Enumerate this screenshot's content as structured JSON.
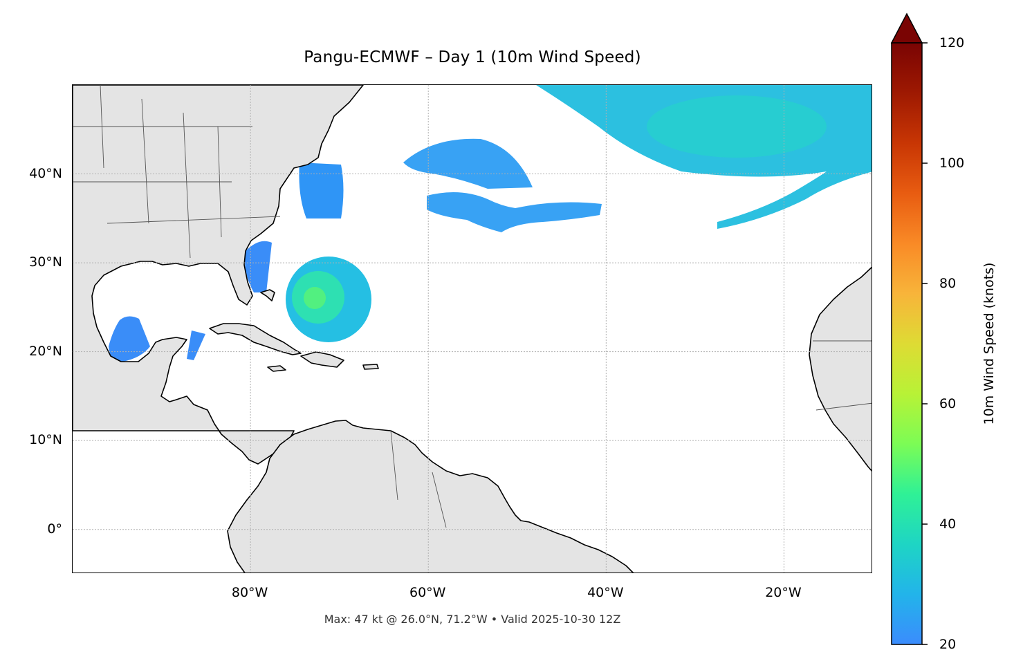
{
  "title": "Pangu-ECMWF – Day 1 (10m Wind Speed)",
  "footer": "Max: 47 kt @ 26.0°N, 71.2°W • Valid 2025-10-30 12Z",
  "map": {
    "extent": {
      "lon_min": -100,
      "lon_max": -10,
      "lat_min": -5,
      "lat_max": 50
    },
    "lat_ticks": [
      {
        "value": 40,
        "label": "40°N"
      },
      {
        "value": 30,
        "label": "30°N"
      },
      {
        "value": 20,
        "label": "20°N"
      },
      {
        "value": 10,
        "label": "10°N"
      },
      {
        "value": 0,
        "label": "0°"
      }
    ],
    "lon_ticks": [
      {
        "value": -80,
        "label": "80°W"
      },
      {
        "value": -60,
        "label": "60°W"
      },
      {
        "value": -40,
        "label": "40°W"
      },
      {
        "value": -20,
        "label": "20°W"
      }
    ],
    "gridlines": true,
    "land_color": "#e4e4e4",
    "ocean_color": "#ffffff"
  },
  "colorbar": {
    "label": "10m Wind Speed (knots)",
    "min": 20,
    "max": 120,
    "ticks": [
      "20",
      "40",
      "60",
      "80",
      "100",
      "120"
    ],
    "extend": "max",
    "colormap": "turbo",
    "colors": [
      "#3b8cfd",
      "#22b4ea",
      "#1ed5c4",
      "#2ff196",
      "#7cfc55",
      "#b8f236",
      "#dedb34",
      "#f8b43a",
      "#f98a26",
      "#e85c11",
      "#c83604",
      "#9e1902",
      "#7a0403"
    ]
  }
}
